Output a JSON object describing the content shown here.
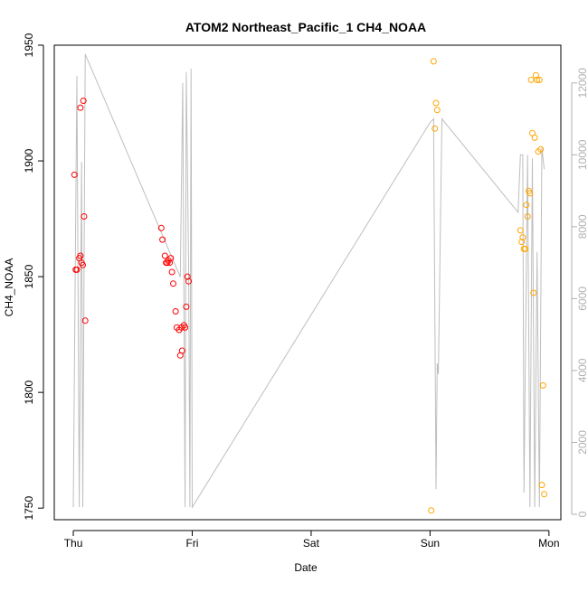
{
  "chart_data": {
    "type": "scatter",
    "title": "ATOM2 Northeast_Pacific_1 CH4_NOAA",
    "xlabel": "Date",
    "ylabel": "CH4_NOAA",
    "x_ticks": [
      "Thu",
      "Fri",
      "Sat",
      "Sun",
      "Mon"
    ],
    "xlim": [
      -0.16,
      4.1
    ],
    "ylim": [
      1745,
      1950
    ],
    "y_ticks": [
      1750,
      1800,
      1850,
      1900,
      1950
    ],
    "y2lim": [
      -150,
      13050
    ],
    "y2_ticks": [
      0,
      2000,
      4000,
      6000,
      8000,
      10000,
      12000
    ],
    "grid": false,
    "colors": {
      "points_early": "#ff0000",
      "points_late": "#ffa500",
      "altitude_line": "#bebebe",
      "axis": "#000000",
      "right_axis": "#b0b0b0"
    },
    "series": [
      {
        "color": "#ff0000",
        "points": [
          [
            0.01,
            1894
          ],
          [
            0.02,
            1853
          ],
          [
            0.03,
            1853
          ],
          [
            0.05,
            1858
          ],
          [
            0.06,
            1923
          ],
          [
            0.06,
            1859
          ],
          [
            0.07,
            1856
          ],
          [
            0.08,
            1855
          ],
          [
            0.085,
            1926
          ],
          [
            0.09,
            1876
          ],
          [
            0.1,
            1831
          ],
          [
            0.74,
            1871
          ],
          [
            0.75,
            1866
          ],
          [
            0.77,
            1859
          ],
          [
            0.78,
            1856
          ],
          [
            0.79,
            1856
          ],
          [
            0.8,
            1857
          ],
          [
            0.81,
            1856
          ],
          [
            0.82,
            1858
          ],
          [
            0.83,
            1852
          ],
          [
            0.84,
            1847
          ],
          [
            0.86,
            1835
          ],
          [
            0.87,
            1828
          ],
          [
            0.89,
            1827
          ],
          [
            0.9,
            1816
          ],
          [
            0.91,
            1828
          ],
          [
            0.915,
            1818
          ],
          [
            0.93,
            1829
          ],
          [
            0.94,
            1828
          ],
          [
            0.95,
            1837
          ],
          [
            0.96,
            1850
          ],
          [
            0.97,
            1848
          ]
        ]
      },
      {
        "color": "#ffa500",
        "points": [
          [
            3.01,
            1749
          ],
          [
            3.03,
            1943
          ],
          [
            3.04,
            1914
          ],
          [
            3.05,
            1925
          ],
          [
            3.06,
            1922
          ],
          [
            3.76,
            1870
          ],
          [
            3.77,
            1865
          ],
          [
            3.78,
            1867
          ],
          [
            3.79,
            1862
          ],
          [
            3.8,
            1862
          ],
          [
            3.81,
            1881
          ],
          [
            3.82,
            1876
          ],
          [
            3.83,
            1887
          ],
          [
            3.84,
            1886
          ],
          [
            3.85,
            1935
          ],
          [
            3.86,
            1912
          ],
          [
            3.87,
            1843
          ],
          [
            3.88,
            1910
          ],
          [
            3.89,
            1937
          ],
          [
            3.9,
            1935
          ],
          [
            3.91,
            1904
          ],
          [
            3.92,
            1935
          ],
          [
            3.93,
            1905
          ],
          [
            3.94,
            1760
          ],
          [
            3.95,
            1803
          ],
          [
            3.96,
            1756
          ]
        ]
      },
      {
        "axis": "right",
        "color": "#bebebe",
        "line": [
          [
            0.0,
            200
          ],
          [
            0.03,
            12200
          ],
          [
            0.05,
            200
          ],
          [
            0.07,
            9800
          ],
          [
            0.08,
            200
          ],
          [
            0.1,
            12800
          ],
          [
            0.9,
            6600
          ],
          [
            0.92,
            12000
          ],
          [
            0.94,
            200
          ],
          [
            0.95,
            12300
          ],
          [
            0.97,
            7000
          ],
          [
            0.98,
            200
          ],
          [
            0.99,
            12400
          ],
          [
            1.0,
            200
          ],
          [
            3.0,
            10900
          ],
          [
            3.03,
            11000
          ],
          [
            3.05,
            700
          ],
          [
            3.06,
            4200
          ],
          [
            3.07,
            3900
          ],
          [
            3.1,
            11000
          ],
          [
            3.74,
            8400
          ],
          [
            3.76,
            10000
          ],
          [
            3.78,
            10000
          ],
          [
            3.79,
            600
          ],
          [
            3.82,
            10000
          ],
          [
            3.84,
            200
          ],
          [
            3.86,
            9900
          ],
          [
            3.88,
            200
          ],
          [
            3.9,
            7300
          ],
          [
            3.92,
            200
          ],
          [
            3.94,
            10200
          ],
          [
            3.96,
            9600
          ]
        ]
      }
    ]
  }
}
